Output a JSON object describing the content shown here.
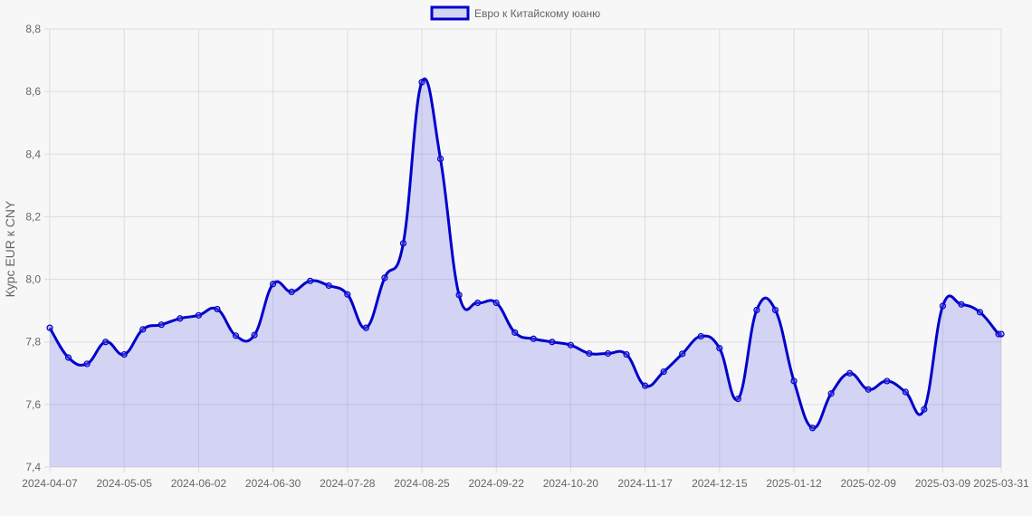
{
  "chart_data": {
    "type": "line",
    "title": "",
    "xlabel": "",
    "ylabel": "Курс EUR к CNY",
    "ylim": [
      7.4,
      8.8
    ],
    "y_ticks": [
      "7,4",
      "7,6",
      "7,8",
      "8,0",
      "8,2",
      "8,4",
      "8,6",
      "8,8"
    ],
    "y_tick_values": [
      7.4,
      7.6,
      7.8,
      8.0,
      8.2,
      8.4,
      8.6,
      8.8
    ],
    "x_range": [
      "2024-04-07",
      "2025-03-31"
    ],
    "x_ticks": [
      "2024-04-07",
      "2024-05-05",
      "2024-06-02",
      "2024-06-30",
      "2024-07-28",
      "2024-08-25",
      "2024-09-22",
      "2024-10-20",
      "2024-11-17",
      "2024-12-15",
      "2025-01-12",
      "2025-02-09",
      "2025-03-09",
      "2025-03-31"
    ],
    "grid": true,
    "legend_position": "top-center",
    "colors": {
      "line": "#0000cc",
      "fill": "rgba(120,120,235,0.28)",
      "grid": "#dddddd"
    },
    "series": [
      {
        "name": "Евро к Китайскому юаню",
        "x": [
          "2024-04-07",
          "2024-04-14",
          "2024-04-21",
          "2024-04-28",
          "2024-05-05",
          "2024-05-12",
          "2024-05-19",
          "2024-05-26",
          "2024-06-02",
          "2024-06-09",
          "2024-06-16",
          "2024-06-23",
          "2024-06-30",
          "2024-07-07",
          "2024-07-14",
          "2024-07-21",
          "2024-07-28",
          "2024-08-04",
          "2024-08-11",
          "2024-08-18",
          "2024-08-25",
          "2024-09-01",
          "2024-09-08",
          "2024-09-15",
          "2024-09-22",
          "2024-09-29",
          "2024-10-06",
          "2024-10-13",
          "2024-10-20",
          "2024-10-27",
          "2024-11-03",
          "2024-11-10",
          "2024-11-17",
          "2024-11-24",
          "2024-12-01",
          "2024-12-08",
          "2024-12-15",
          "2024-12-22",
          "2024-12-29",
          "2025-01-05",
          "2025-01-12",
          "2025-01-19",
          "2025-01-26",
          "2025-02-02",
          "2025-02-09",
          "2025-02-16",
          "2025-02-23",
          "2025-03-02",
          "2025-03-09",
          "2025-03-16",
          "2025-03-23",
          "2025-03-30",
          "2025-03-31"
        ],
        "values": [
          7.845,
          7.75,
          7.73,
          7.8,
          7.76,
          7.84,
          7.855,
          7.875,
          7.885,
          7.905,
          7.82,
          7.822,
          7.985,
          7.96,
          7.995,
          7.98,
          7.952,
          7.845,
          8.005,
          8.115,
          8.63,
          8.385,
          7.95,
          7.925,
          7.925,
          7.83,
          7.81,
          7.8,
          7.79,
          7.763,
          7.763,
          7.76,
          7.66,
          7.705,
          7.762,
          7.818,
          7.78,
          7.618,
          7.902,
          7.902,
          7.675,
          7.525,
          7.635,
          7.7,
          7.648,
          7.675,
          7.64,
          7.585,
          7.915,
          7.92,
          7.895,
          7.825,
          7.825
        ]
      }
    ]
  }
}
